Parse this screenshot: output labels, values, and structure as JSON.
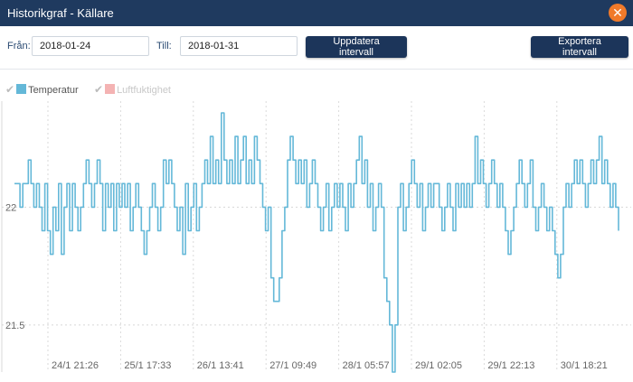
{
  "window": {
    "title": "Historikgraf - Källare"
  },
  "controls": {
    "from_label": "Från:",
    "from_value": "2018-01-24",
    "to_label": "Till:",
    "to_value": "2018-01-31",
    "update_label": "Uppdatera intervall",
    "export_label": "Exportera intervall"
  },
  "legend": {
    "temperature": {
      "label": "Temperatur",
      "color": "#64b8d8",
      "checked": true
    },
    "humidity": {
      "label": "Luftfuktighet",
      "color": "#f4b3b3",
      "checked": false
    }
  },
  "chart_data": {
    "type": "line",
    "x_ticks": [
      "24/1 21:26",
      "25/1 17:33",
      "26/1 13:41",
      "27/1 09:49",
      "28/1 05:57",
      "29/1 02:05",
      "29/1 22:13",
      "30/1 18:21"
    ],
    "y_ticks": [
      "22",
      "21.5"
    ],
    "y_tick_values": [
      22,
      21.5
    ],
    "ylim": [
      21.3,
      22.45
    ],
    "grid": true,
    "series": [
      {
        "name": "Temperatur",
        "color": "#64b8d8",
        "values": [
          22.1,
          22.1,
          22.0,
          22.1,
          22.1,
          22.2,
          22.1,
          22.0,
          22.1,
          22.0,
          21.9,
          22.1,
          21.9,
          21.8,
          22.0,
          21.9,
          22.1,
          21.8,
          22.0,
          22.1,
          21.9,
          22.1,
          22.0,
          21.9,
          22.0,
          22.1,
          22.2,
          22.1,
          22.0,
          22.1,
          22.2,
          22.1,
          21.9,
          22.1,
          22.0,
          22.1,
          21.9,
          22.1,
          22.0,
          22.1,
          22.0,
          22.1,
          21.9,
          22.0,
          22.1,
          22.0,
          21.9,
          21.8,
          21.9,
          22.0,
          22.1,
          22.0,
          21.9,
          22.0,
          22.2,
          22.1,
          22.2,
          22.1,
          22.0,
          21.9,
          22.0,
          21.8,
          22.1,
          21.9,
          22.0,
          22.1,
          21.9,
          22.0,
          22.1,
          22.2,
          22.1,
          22.3,
          22.1,
          22.2,
          22.1,
          22.4,
          22.2,
          22.1,
          22.2,
          22.1,
          22.3,
          22.1,
          22.2,
          22.3,
          22.1,
          22.2,
          22.1,
          22.3,
          22.2,
          22.1,
          22.0,
          21.9,
          22.0,
          21.7,
          21.6,
          21.6,
          21.7,
          21.9,
          22.0,
          22.2,
          22.3,
          22.2,
          22.1,
          22.2,
          22.1,
          22.2,
          22.0,
          22.1,
          22.2,
          22.1,
          22.0,
          21.9,
          22.0,
          22.1,
          21.9,
          22.0,
          22.1,
          22.0,
          22.1,
          22.0,
          21.9,
          22.1,
          22.0,
          22.1,
          22.2,
          22.3,
          22.1,
          22.2,
          22.0,
          22.1,
          21.9,
          22.0,
          22.1,
          22.0,
          21.7,
          21.6,
          21.5,
          21.3,
          21.5,
          22.0,
          22.1,
          21.9,
          22.0,
          22.1,
          22.2,
          22.1,
          22.0,
          22.1,
          21.9,
          22.0,
          22.1,
          22.0,
          22.1,
          22.1,
          22.0,
          21.9,
          22.0,
          22.1,
          22.0,
          21.9,
          22.1,
          22.0,
          22.1,
          22.0,
          22.1,
          22.0,
          22.1,
          22.3,
          22.1,
          22.2,
          22.1,
          22.0,
          22.1,
          22.2,
          22.1,
          22.0,
          22.1,
          22.0,
          21.9,
          21.8,
          21.9,
          22.0,
          22.1,
          22.2,
          22.1,
          22.0,
          22.1,
          22.2,
          22.0,
          21.9,
          22.0,
          22.1,
          22.0,
          21.9,
          22.0,
          21.9,
          21.8,
          21.7,
          21.8,
          22.0,
          22.1,
          22.0,
          22.1,
          22.2,
          22.1,
          22.2,
          22.1,
          22.0,
          22.1,
          22.2,
          22.1,
          22.2,
          22.3,
          22.1,
          22.2,
          22.1,
          22.0,
          22.1,
          22.0,
          21.9
        ]
      }
    ]
  }
}
